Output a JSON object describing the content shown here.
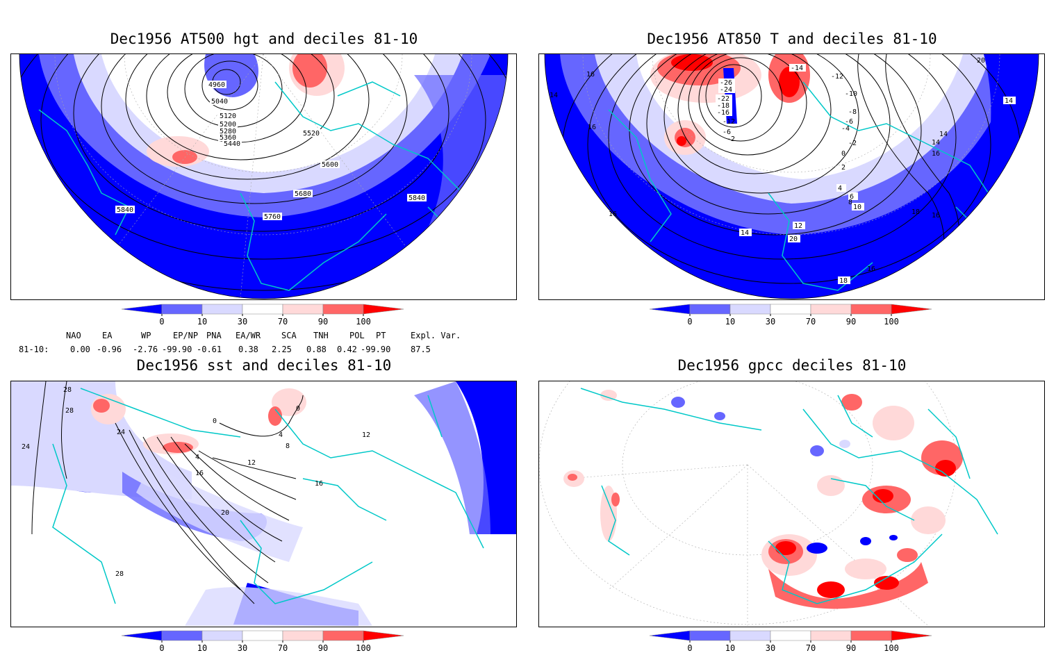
{
  "panels": [
    {
      "id": "p1",
      "title": "Dec1956 AT500 hgt and deciles 81-10",
      "labels": [
        "4960",
        "5040",
        "5120",
        "5200",
        "5280",
        "5360",
        "5440",
        "5520",
        "5600",
        "5680",
        "5760",
        "5840",
        "5840"
      ]
    },
    {
      "id": "p2",
      "title": "Dec1956 AT850 T and deciles 81-10",
      "labels": [
        "16",
        "14",
        "16",
        "16",
        "-14",
        "-12",
        "-10",
        "-26",
        "-24",
        "-22",
        "-18",
        "-16",
        "-12",
        "-6",
        "-2",
        "-8",
        "-6",
        "-4",
        "-2",
        "0",
        "2",
        "4",
        "6",
        "8",
        "10",
        "12",
        "14",
        "16",
        "18",
        "20",
        "20",
        "16",
        "14",
        "16",
        "18",
        "14",
        "14"
      ]
    },
    {
      "id": "p3",
      "title": "Dec1956 sst and deciles 81-10",
      "labels": [
        "28",
        "28",
        "24",
        "24",
        "0",
        "0",
        "4",
        "4",
        "8",
        "12",
        "12",
        "16",
        "16",
        "20",
        "28"
      ]
    },
    {
      "id": "p4",
      "title": "Dec1956 gpcc deciles 81-10",
      "labels": []
    }
  ],
  "colorbar": {
    "colors": [
      "#0000ff",
      "#6666ff",
      "#d9d9ff",
      "#ffffff",
      "#ffd9d9",
      "#ff6666",
      "#ff0000"
    ],
    "ticks": [
      "0",
      "10",
      "30",
      "70",
      "90",
      "100"
    ]
  },
  "indices": {
    "headers": [
      "NAO",
      "EA",
      "WP",
      "EP/NP",
      "PNA",
      "EA/WR",
      "SCA",
      "TNH",
      "POL",
      "PT",
      "Expl. Var."
    ],
    "row_label": "81-10:",
    "values": [
      "0.00",
      "-0.96",
      "-2.76",
      "-99.90",
      "-0.61",
      "0.38",
      "2.25",
      "0.88",
      "0.42",
      "-99.90",
      "87.5"
    ]
  }
}
